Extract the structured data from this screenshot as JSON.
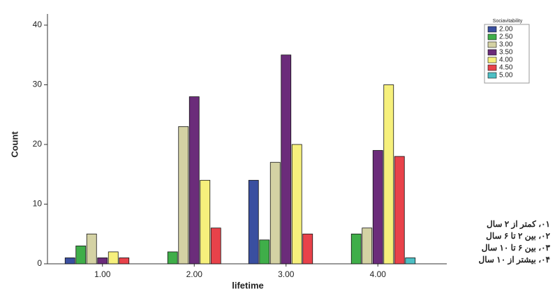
{
  "chart_data": {
    "type": "bar",
    "x_label": "lifetime",
    "y_label": "Count",
    "legend_title": "Sociavitability",
    "categories": [
      "1.00",
      "2.00",
      "3.00",
      "4.00"
    ],
    "series": [
      {
        "name": "2.00",
        "color": "#3a4fa0",
        "values": [
          1,
          null,
          14,
          null
        ]
      },
      {
        "name": "2.50",
        "color": "#3fae49",
        "values": [
          3,
          2,
          4,
          5
        ]
      },
      {
        "name": "3.00",
        "color": "#d4d2a4",
        "values": [
          5,
          23,
          17,
          6
        ]
      },
      {
        "name": "3.50",
        "color": "#6b2c7a",
        "values": [
          1,
          28,
          35,
          19
        ]
      },
      {
        "name": "4.00",
        "color": "#f6f07c",
        "values": [
          2,
          14,
          20,
          30
        ]
      },
      {
        "name": "4.50",
        "color": "#e8424a",
        "values": [
          1,
          6,
          5,
          18
        ]
      },
      {
        "name": "5.00",
        "color": "#4dbfc4",
        "values": [
          null,
          null,
          null,
          1
        ]
      }
    ],
    "ylim": [
      0,
      40
    ],
    "yticks": [
      0,
      10,
      20,
      30,
      40
    ],
    "annotations": [
      "۰۱، کمتر از ۲ سال",
      "۰۲، بین ۲ تا ۶ سال",
      "۰۳، بین ۶ تا ۱۰ سال",
      "۰۴، بیشتر از ۱۰ سال"
    ]
  }
}
